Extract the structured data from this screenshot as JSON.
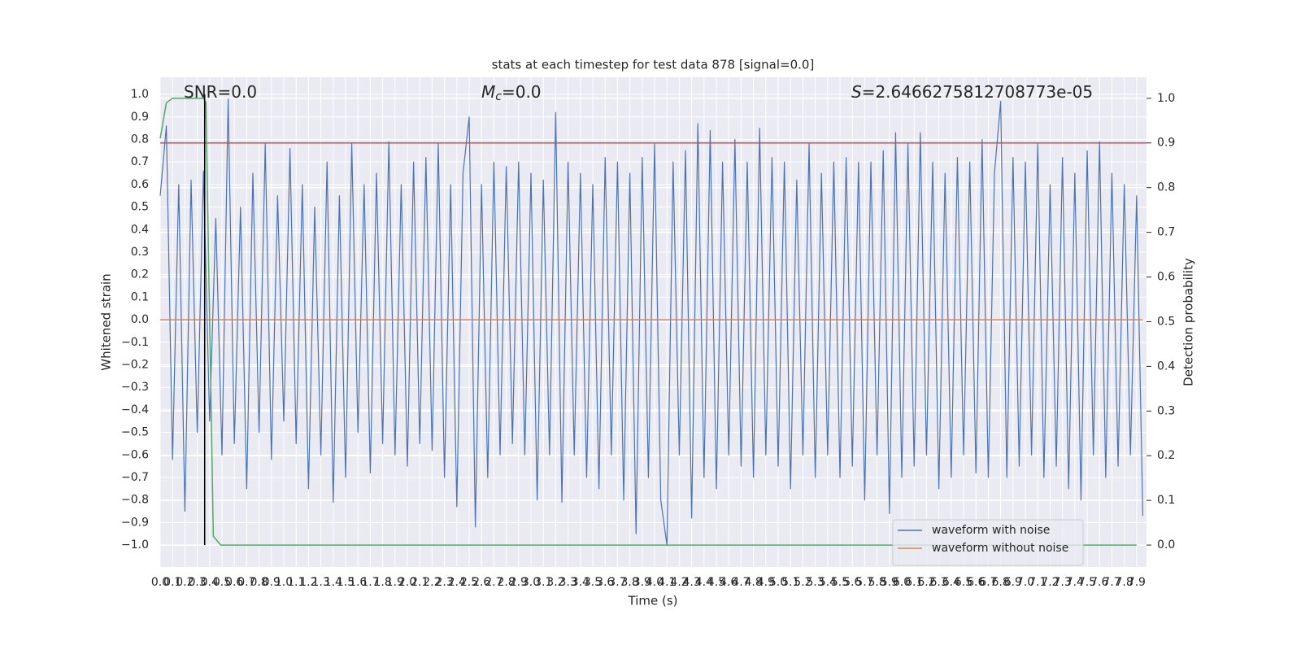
{
  "chart_data": {
    "type": "line",
    "title": "stats at each timestep for test data 878 [signal=0.0]",
    "xlabel": "Time (s)",
    "ylabel": "Whitened strain",
    "y2label": "Detection probability",
    "annotations": [
      {
        "parts": [
          "SNR=0.0"
        ]
      },
      {
        "parts": [
          "M",
          "c",
          "=0.0"
        ]
      },
      {
        "parts": [
          "S",
          "=2.6466275812708773e-05"
        ]
      }
    ],
    "xlim": [
      0,
      7.98
    ],
    "ylim": [
      -1.097,
      1.076
    ],
    "y2lim": [
      -0.049,
      1.047
    ],
    "xticks": [
      {
        "value": 0,
        "label": "0.0"
      },
      0.1,
      0.2,
      0.3,
      0.4,
      0.5,
      0.6,
      0.7,
      0.8,
      0.9,
      {
        "value": 1,
        "label": "1.0"
      },
      1.1,
      1.2,
      1.3,
      1.4,
      1.5,
      1.6,
      1.7,
      1.8,
      1.9,
      {
        "value": 2,
        "label": "2.0"
      },
      2.1,
      2.2,
      2.3,
      2.4,
      2.5,
      2.6,
      2.7,
      2.8,
      2.9,
      {
        "value": 3,
        "label": "3.0"
      },
      3.1,
      3.2,
      3.3,
      3.4,
      3.5,
      3.6,
      3.7,
      3.8,
      3.9,
      {
        "value": 4,
        "label": "4.0"
      },
      4.1,
      4.2,
      4.3,
      4.4,
      4.5,
      4.6,
      4.7,
      4.8,
      4.9,
      {
        "value": 5,
        "label": "5.0"
      },
      5.1,
      5.2,
      5.3,
      5.4,
      5.5,
      5.6,
      5.7,
      5.8,
      5.9,
      {
        "value": 6,
        "label": "6.0"
      },
      6.1,
      6.2,
      6.3,
      6.4,
      6.5,
      6.6,
      6.7,
      6.8,
      6.9,
      {
        "value": 7,
        "label": "7.0"
      },
      7.1,
      7.2,
      7.3,
      7.4,
      7.5,
      7.6,
      7.7,
      7.8,
      7.9
    ],
    "yticks": [
      {
        "value": -1,
        "label": "−1.0"
      },
      {
        "value": -0.9,
        "label": "−0.9"
      },
      {
        "value": -0.8,
        "label": "−0.8"
      },
      {
        "value": -0.7,
        "label": "−0.7"
      },
      {
        "value": -0.6,
        "label": "−0.6"
      },
      {
        "value": -0.5,
        "label": "−0.5"
      },
      {
        "value": -0.4,
        "label": "−0.4"
      },
      {
        "value": -0.3,
        "label": "−0.3"
      },
      {
        "value": -0.2,
        "label": "−0.2"
      },
      {
        "value": -0.1,
        "label": "−0.1"
      },
      {
        "value": 0,
        "label": "0.0"
      },
      0.1,
      0.2,
      0.3,
      0.4,
      0.5,
      0.6,
      0.7,
      0.8,
      0.9,
      {
        "value": 1,
        "label": "1.0"
      }
    ],
    "y2ticks": [
      {
        "value": 0,
        "label": "0.0"
      },
      0.1,
      0.2,
      0.3,
      0.4,
      0.5,
      0.6,
      0.7,
      0.8,
      0.9,
      {
        "value": 1,
        "label": "1.0"
      }
    ],
    "grid": true,
    "legend": "lower right",
    "series": [
      {
        "name": "waveform with noise",
        "color": "#4c72b0",
        "x": [
          0,
          0.05,
          0.1,
          0.15,
          0.2,
          0.25,
          0.3,
          0.35,
          0.4,
          0.45,
          0.5,
          0.55,
          0.6,
          0.65,
          0.7,
          0.75,
          0.8,
          0.85,
          0.9,
          0.95,
          1,
          1.05,
          1.1,
          1.15,
          1.2,
          1.25,
          1.3,
          1.35,
          1.4,
          1.45,
          1.5,
          1.55,
          1.6,
          1.65,
          1.7,
          1.75,
          1.8,
          1.85,
          1.9,
          1.95,
          2,
          2.05,
          2.1,
          2.15,
          2.2,
          2.25,
          2.3,
          2.35,
          2.4,
          2.45,
          2.5,
          2.55,
          2.6,
          2.65,
          2.7,
          2.75,
          2.8,
          2.85,
          2.9,
          2.95,
          3,
          3.05,
          3.1,
          3.15,
          3.2,
          3.25,
          3.3,
          3.35,
          3.4,
          3.45,
          3.5,
          3.55,
          3.6,
          3.65,
          3.7,
          3.75,
          3.8,
          3.85,
          3.9,
          3.95,
          4,
          4.05,
          4.1,
          4.15,
          4.2,
          4.25,
          4.3,
          4.35,
          4.4,
          4.45,
          4.5,
          4.55,
          4.6,
          4.65,
          4.7,
          4.75,
          4.8,
          4.85,
          4.9,
          4.95,
          5,
          5.05,
          5.1,
          5.15,
          5.2,
          5.25,
          5.3,
          5.35,
          5.4,
          5.45,
          5.5,
          5.55,
          5.6,
          5.65,
          5.7,
          5.75,
          5.8,
          5.85,
          5.9,
          5.95,
          6,
          6.05,
          6.1,
          6.15,
          6.2,
          6.25,
          6.3,
          6.35,
          6.4,
          6.45,
          6.5,
          6.55,
          6.6,
          6.65,
          6.7,
          6.75,
          6.8,
          6.85,
          6.9,
          6.95,
          7,
          7.05,
          7.1,
          7.15,
          7.2,
          7.25,
          7.3,
          7.35,
          7.4,
          7.45,
          7.5,
          7.55,
          7.6,
          7.65,
          7.7,
          7.75,
          7.8,
          7.85,
          7.9,
          7.95
        ],
        "values": [
          0.55,
          0.86,
          -0.62,
          0.6,
          -0.85,
          0.62,
          -0.5,
          0.66,
          -0.45,
          0.45,
          -0.6,
          0.98,
          -0.55,
          0.5,
          -0.75,
          0.65,
          -0.5,
          0.78,
          -0.62,
          0.55,
          -0.45,
          0.76,
          -0.55,
          0.6,
          -0.75,
          0.5,
          -0.6,
          0.7,
          -0.81,
          0.55,
          -0.7,
          0.78,
          -0.5,
          0.6,
          -0.68,
          0.65,
          -0.55,
          0.79,
          -0.6,
          0.6,
          -0.65,
          0.7,
          -0.55,
          0.72,
          -0.58,
          0.78,
          -0.7,
          0.6,
          -0.83,
          0.65,
          0.9,
          -0.92,
          0.6,
          -0.7,
          0.7,
          -0.6,
          0.68,
          -0.55,
          0.7,
          -0.6,
          0.65,
          -0.8,
          0.62,
          -0.6,
          0.92,
          -0.81,
          0.7,
          -0.6,
          0.65,
          -0.7,
          0.6,
          -0.75,
          0.72,
          -0.6,
          0.7,
          -0.8,
          0.65,
          -0.95,
          0.72,
          -0.7,
          0.78,
          -0.8,
          -1.0,
          0.7,
          -0.6,
          0.75,
          -0.88,
          0.87,
          -0.7,
          0.84,
          -0.75,
          0.7,
          -0.6,
          0.8,
          -0.65,
          0.7,
          -0.7,
          0.85,
          -0.6,
          0.72,
          -0.65,
          0.7,
          -0.75,
          0.62,
          -0.6,
          0.78,
          -0.7,
          0.65,
          -0.6,
          0.7,
          -0.7,
          0.72,
          -0.65,
          0.7,
          -0.8,
          0.7,
          -0.6,
          0.75,
          -0.86,
          0.83,
          -0.7,
          0.78,
          -0.65,
          0.83,
          -0.6,
          0.7,
          -0.75,
          0.65,
          -0.7,
          0.72,
          -0.6,
          0.7,
          -0.68,
          0.8,
          -0.7,
          0.65,
          0.97,
          -0.7,
          0.72,
          -0.65,
          0.7,
          -0.6,
          0.78,
          -0.7,
          0.6,
          -0.65,
          0.72,
          -0.75,
          0.65,
          -0.8,
          0.75,
          -0.6,
          0.79,
          -0.7,
          0.65,
          -0.65,
          0.6,
          -0.6,
          0.55,
          -0.87
        ]
      },
      {
        "name": "waveform without noise",
        "color": "#dd8452",
        "x": [
          0,
          7.95
        ],
        "values": [
          0,
          0
        ]
      },
      {
        "color": "#55a868",
        "axis": "y2",
        "x": [
          0,
          0.05,
          0.1,
          0.35,
          0.37,
          0.43,
          0.49,
          7.9
        ],
        "values": [
          0.91,
          0.99,
          1.0,
          1.0,
          0.99,
          0.02,
          0.0,
          0.0
        ]
      }
    ],
    "hline": {
      "value": 0.9,
      "axis": "y2",
      "color": "#c44e52"
    },
    "vline": {
      "x": 0.36,
      "ymin": -1,
      "ymax": 1,
      "color": "#000000"
    }
  }
}
